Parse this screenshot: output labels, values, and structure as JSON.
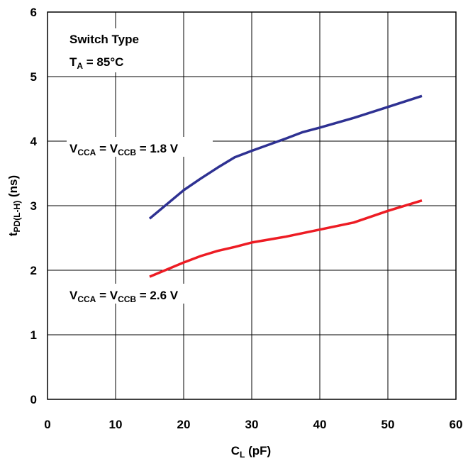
{
  "chart_data": {
    "type": "line",
    "title": "",
    "xlabel": {
      "main": "C",
      "sub": "L",
      "rest": " (pF)"
    },
    "ylabel": {
      "main": "t",
      "sub": "PD(L-H)",
      "rest": " (ns)"
    },
    "xlim": [
      0,
      60
    ],
    "ylim": [
      0,
      6
    ],
    "x_ticks": [
      0,
      10,
      20,
      30,
      40,
      50,
      60
    ],
    "y_ticks": [
      0,
      1,
      2,
      3,
      4,
      5,
      6
    ],
    "grid": true,
    "annotations": {
      "switch_type": "Switch Type",
      "ta": {
        "main": "T",
        "sub": "A",
        "rest": " = 85°C"
      }
    },
    "series": [
      {
        "label": {
          "v1": "V",
          "s1": "CCA",
          "mid": " = V",
          "s2": "CCB",
          "rest": " = 1.8 V"
        },
        "color": "#2e3192",
        "x": [
          15,
          17.5,
          20,
          22.5,
          25,
          27.5,
          30,
          35,
          37.5,
          40,
          45,
          50,
          55
        ],
        "y": [
          2.8,
          3.02,
          3.24,
          3.42,
          3.59,
          3.75,
          3.85,
          4.04,
          4.14,
          4.21,
          4.36,
          4.53,
          4.7
        ]
      },
      {
        "label": {
          "v1": "V",
          "s1": "CCA",
          "mid": " = V",
          "s2": "CCB",
          "rest": " = 2.6 V"
        },
        "color": "#ed1c24",
        "x": [
          15,
          17.5,
          20,
          22.5,
          25,
          27.5,
          30,
          35,
          40,
          45,
          50,
          55
        ],
        "y": [
          1.9,
          2.01,
          2.12,
          2.22,
          2.3,
          2.36,
          2.43,
          2.52,
          2.63,
          2.74,
          2.92,
          3.08
        ]
      }
    ]
  }
}
